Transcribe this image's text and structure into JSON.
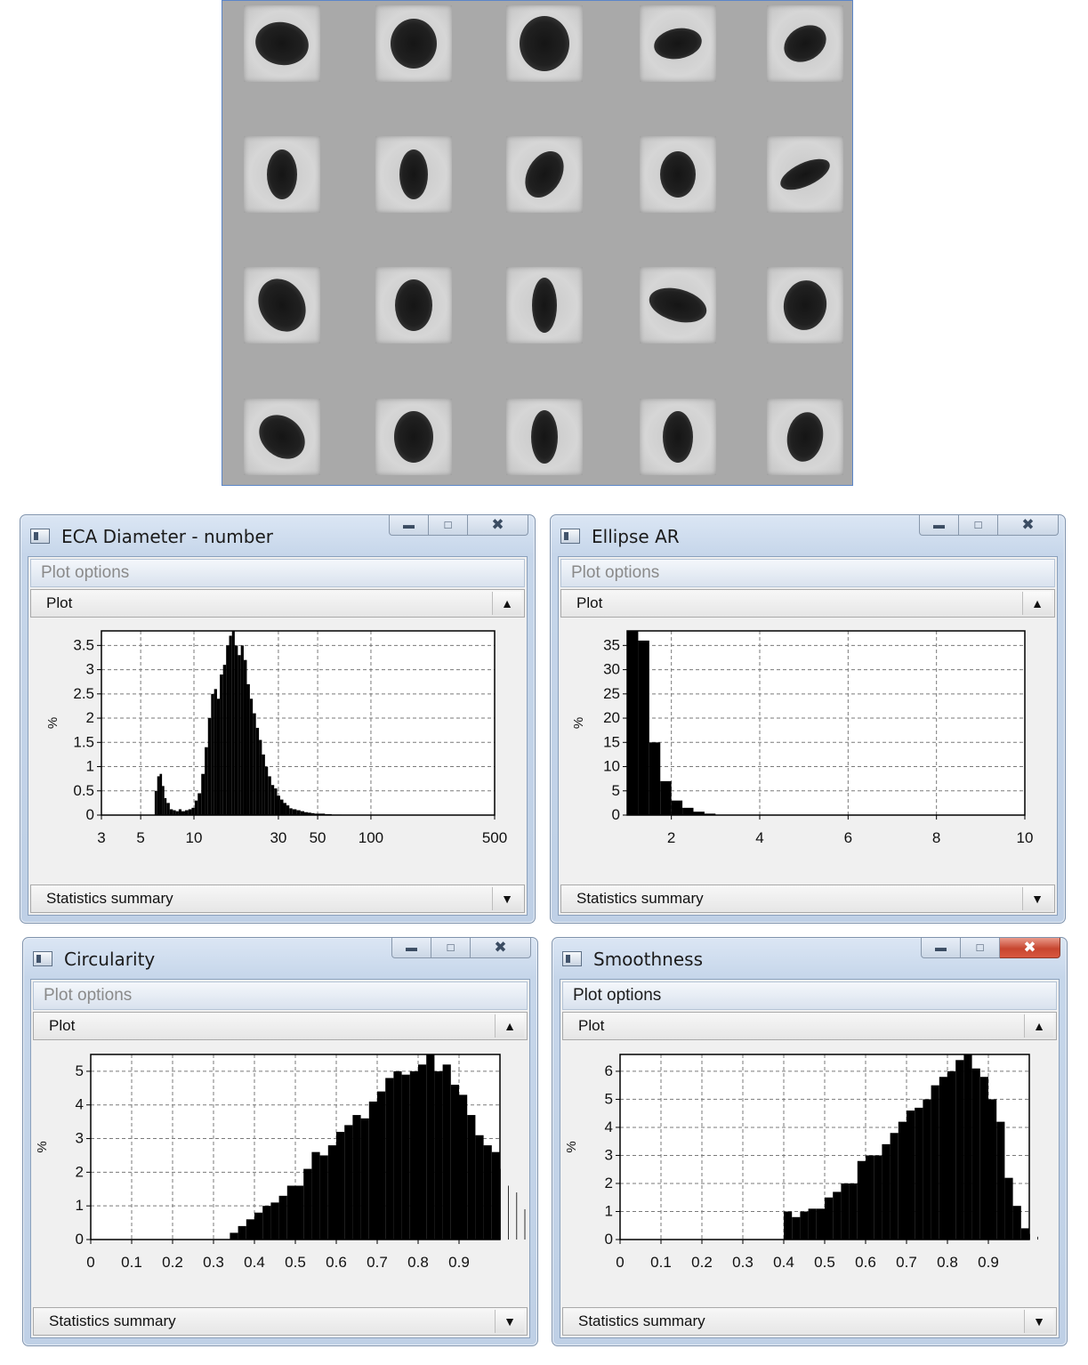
{
  "windows": [
    {
      "title": "ECA Diameter - number",
      "plot_options_label": "Plot options",
      "plot_label": "Plot",
      "statistics_label": "Statistics summary",
      "active": false
    },
    {
      "title": "Ellipse AR",
      "plot_options_label": "Plot options",
      "plot_label": "Plot",
      "statistics_label": "Statistics summary",
      "active": false
    },
    {
      "title": "Circularity",
      "plot_options_label": "Plot options",
      "plot_label": "Plot",
      "statistics_label": "Statistics summary",
      "active": false
    },
    {
      "title": "Smoothness",
      "plot_options_label": "Plot options",
      "plot_label": "Plot",
      "statistics_label": "Statistics summary",
      "active": true
    }
  ],
  "chart_data": [
    {
      "type": "bar",
      "window": "ECA Diameter - number",
      "x_scale": "log",
      "xlim": [
        3,
        500
      ],
      "x_ticks": [
        3,
        5,
        10,
        30,
        50,
        100,
        500
      ],
      "x_tick_labels": [
        "3",
        "5",
        "10",
        "30",
        "50",
        "100",
        "500"
      ],
      "ylim": [
        0,
        3.8
      ],
      "y_ticks": [
        0,
        0.5,
        1,
        1.5,
        2,
        2.5,
        3,
        3.5
      ],
      "y_tick_labels": [
        "0",
        "0.5",
        "1",
        "1.5",
        "2",
        "2.5",
        "3",
        "3.5"
      ],
      "ylabel": "%",
      "grid": true,
      "x": [
        6.0,
        6.2,
        6.4,
        6.6,
        6.8,
        7.0,
        7.3,
        7.6,
        7.9,
        8.2,
        8.5,
        8.9,
        9.3,
        9.7,
        10.1,
        10.5,
        11.0,
        11.5,
        12.0,
        12.5,
        13.0,
        13.5,
        14.0,
        14.6,
        15.2,
        15.8,
        16.4,
        17.0,
        17.7,
        18.4,
        19.1,
        19.9,
        20.7,
        21.5,
        22.4,
        23.3,
        24.2,
        25.2,
        26.2,
        27.3,
        28.4,
        29.5,
        30.7,
        32.0,
        33.3,
        34.6,
        36.0,
        38.0,
        40.0,
        42.0,
        44.0,
        46.0,
        48.0,
        50.0,
        55.0,
        60.0,
        65.0
      ],
      "values": [
        0.5,
        0.8,
        0.85,
        0.6,
        0.35,
        0.25,
        0.12,
        0.1,
        0.08,
        0.12,
        0.08,
        0.1,
        0.12,
        0.15,
        0.3,
        0.45,
        0.85,
        1.4,
        2.0,
        2.5,
        2.6,
        2.4,
        2.9,
        3.1,
        3.5,
        3.7,
        3.8,
        3.5,
        3.3,
        3.5,
        3.2,
        2.7,
        2.4,
        2.1,
        1.8,
        1.55,
        1.25,
        1.0,
        0.8,
        0.62,
        0.55,
        0.4,
        0.32,
        0.25,
        0.2,
        0.14,
        0.12,
        0.1,
        0.08,
        0.06,
        0.05,
        0.04,
        0.03,
        0.03,
        0.02,
        0.01,
        0.01
      ]
    },
    {
      "type": "bar",
      "window": "Ellipse AR",
      "xlim": [
        1,
        10
      ],
      "x_ticks": [
        2,
        4,
        6,
        8,
        10
      ],
      "x_tick_labels": [
        "2",
        "4",
        "6",
        "8",
        "10"
      ],
      "ylim": [
        0,
        38
      ],
      "y_ticks": [
        0,
        5,
        10,
        15,
        20,
        25,
        30,
        35
      ],
      "y_tick_labels": [
        "0",
        "5",
        "10",
        "15",
        "20",
        "25",
        "30",
        "35"
      ],
      "ylabel": "%",
      "grid": true,
      "bin_edges": [
        1.0,
        1.25,
        1.5,
        1.75,
        2.0,
        2.25,
        2.5,
        2.75,
        3.0
      ],
      "values": [
        38,
        36,
        15,
        7,
        3,
        1.5,
        0.7,
        0.3
      ]
    },
    {
      "type": "bar",
      "window": "Circularity",
      "xlim": [
        0,
        1
      ],
      "x_ticks": [
        0,
        0.1,
        0.2,
        0.3,
        0.4,
        0.5,
        0.6,
        0.7,
        0.8,
        0.9
      ],
      "x_tick_labels": [
        "0",
        "0.1",
        "0.2",
        "0.3",
        "0.4",
        "0.5",
        "0.6",
        "0.7",
        "0.8",
        "0.9"
      ],
      "ylim": [
        0,
        5.5
      ],
      "y_ticks": [
        0,
        1,
        2,
        3,
        4,
        5
      ],
      "y_tick_labels": [
        "0",
        "1",
        "2",
        "3",
        "4",
        "5"
      ],
      "ylabel": "%",
      "grid": true,
      "bin_start": 0.34,
      "bin_width": 0.02,
      "values": [
        0.2,
        0.4,
        0.6,
        0.8,
        1.0,
        1.1,
        1.3,
        1.6,
        1.6,
        2.1,
        2.6,
        2.5,
        2.8,
        3.2,
        3.4,
        3.7,
        3.6,
        4.1,
        4.4,
        4.8,
        5.0,
        4.9,
        5.0,
        5.2,
        5.5,
        5.0,
        5.2,
        4.6,
        4.3,
        3.7,
        3.1,
        2.8,
        2.6,
        2.1,
        1.6,
        1.4,
        0.9,
        1.7
      ]
    },
    {
      "type": "bar",
      "window": "Smoothness",
      "xlim": [
        0,
        1
      ],
      "x_ticks": [
        0,
        0.1,
        0.2,
        0.3,
        0.4,
        0.5,
        0.6,
        0.7,
        0.8,
        0.9
      ],
      "x_tick_labels": [
        "0",
        "0.1",
        "0.2",
        "0.3",
        "0.4",
        "0.5",
        "0.6",
        "0.7",
        "0.8",
        "0.9"
      ],
      "ylim": [
        0,
        6.6
      ],
      "y_ticks": [
        0,
        1,
        2,
        3,
        4,
        5,
        6
      ],
      "y_tick_labels": [
        "0",
        "1",
        "2",
        "3",
        "4",
        "5",
        "6"
      ],
      "ylabel": "%",
      "grid": true,
      "bin_start": 0.4,
      "bin_width": 0.02,
      "values": [
        1.0,
        0.8,
        1.0,
        1.1,
        1.1,
        1.5,
        1.7,
        2.0,
        2.0,
        2.8,
        3.0,
        3.0,
        3.4,
        3.8,
        4.2,
        4.6,
        4.7,
        5.0,
        5.5,
        5.8,
        6.0,
        6.4,
        6.6,
        6.1,
        5.8,
        5.0,
        4.2,
        2.2,
        1.2,
        0.4,
        0.2,
        0.1
      ]
    }
  ]
}
